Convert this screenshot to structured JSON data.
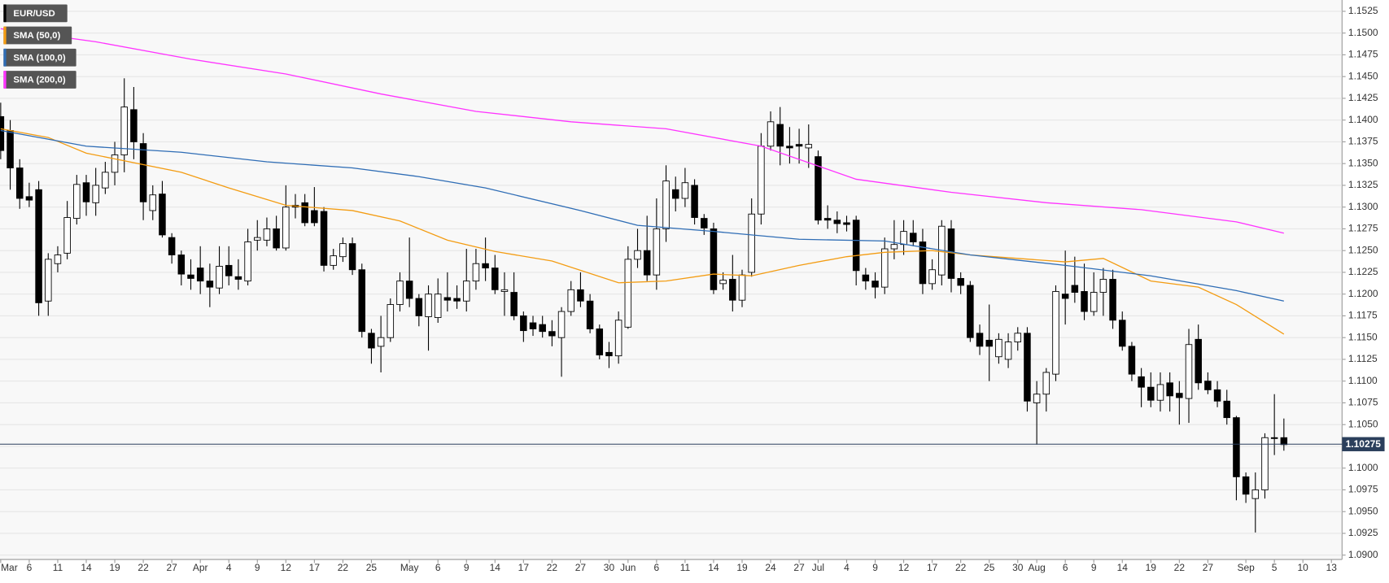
{
  "chart_data": {
    "type": "candlestick",
    "categories": [
      "Mar 1",
      "Mar 4",
      "Mar 5",
      "Mar 6",
      "Mar 7",
      "Mar 8",
      "Mar 11",
      "Mar 12",
      "Mar 13",
      "Mar 14",
      "Mar 15",
      "Mar 18",
      "Mar 19",
      "Mar 20",
      "Mar 21",
      "Mar 22",
      "Mar 25",
      "Mar 26",
      "Mar 27",
      "Mar 28",
      "Mar 29",
      "Apr 1",
      "Apr 2",
      "Apr 3",
      "Apr 4",
      "Apr 5",
      "Apr 8",
      "Apr 9",
      "Apr 10",
      "Apr 11",
      "Apr 12",
      "Apr 15",
      "Apr 16",
      "Apr 17",
      "Apr 18",
      "Apr 19",
      "Apr 22",
      "Apr 23",
      "Apr 24",
      "Apr 25",
      "Apr 26",
      "Apr 29",
      "Apr 30",
      "May 1",
      "May 2",
      "May 3",
      "May 6",
      "May 7",
      "May 8",
      "May 9",
      "May 10",
      "May 13",
      "May 14",
      "May 15",
      "May 16",
      "May 17",
      "May 20",
      "May 21",
      "May 22",
      "May 23",
      "May 24",
      "May 27",
      "May 28",
      "May 29",
      "May 30",
      "May 31",
      "Jun 3",
      "Jun 4",
      "Jun 5",
      "Jun 6",
      "Jun 7",
      "Jun 10",
      "Jun 11",
      "Jun 12",
      "Jun 13",
      "Jun 14",
      "Jun 17",
      "Jun 18",
      "Jun 19",
      "Jun 20",
      "Jun 21",
      "Jun 24",
      "Jun 25",
      "Jun 26",
      "Jun 27",
      "Jun 28",
      "Jul 1",
      "Jul 2",
      "Jul 3",
      "Jul 4",
      "Jul 5",
      "Jul 8",
      "Jul 9",
      "Jul 10",
      "Jul 11",
      "Jul 12",
      "Jul 15",
      "Jul 16",
      "Jul 17",
      "Jul 18",
      "Jul 19",
      "Jul 22",
      "Jul 23",
      "Jul 24",
      "Jul 25",
      "Jul 26",
      "Jul 29",
      "Jul 30",
      "Jul 31",
      "Aug 1",
      "Aug 2",
      "Aug 5",
      "Aug 6",
      "Aug 7",
      "Aug 8",
      "Aug 9",
      "Aug 12",
      "Aug 13",
      "Aug 14",
      "Aug 15",
      "Aug 16",
      "Aug 19",
      "Aug 20",
      "Aug 21",
      "Aug 22",
      "Aug 23",
      "Aug 26",
      "Aug 27",
      "Aug 28",
      "Aug 29",
      "Aug 30",
      "Sep 2",
      "Sep 3",
      "Sep 4",
      "Sep 5",
      "Sep 6",
      "Sep 9",
      "Sep 10",
      "Sep 11",
      "Sep 12",
      "Sep 13"
    ],
    "series": [
      {
        "name": "EUR/USD",
        "color": "#000000",
        "open": [
          1.1404,
          1.1388,
          1.1345,
          1.1312,
          1.132,
          1.1192,
          1.1235,
          1.1247,
          1.1287,
          1.1328,
          1.1305,
          1.1322,
          1.134,
          1.136,
          1.1412,
          1.1373,
          1.1296,
          1.1315,
          1.1265,
          1.1245,
          1.1222,
          1.123,
          1.1215,
          1.1207,
          1.1233,
          1.122,
          1.1215,
          1.1262,
          1.1262,
          1.1275,
          1.1253,
          1.1302,
          1.1305,
          1.1296,
          1.1295,
          1.1233,
          1.1243,
          1.1258,
          1.1228,
          1.1155,
          1.114,
          1.115,
          1.1188,
          1.1215,
          1.1195,
          1.1174,
          1.1173,
          1.1196,
          1.1195,
          1.1192,
          1.1215,
          1.1235,
          1.123,
          1.1203,
          1.1202,
          1.1175,
          1.1167,
          1.1165,
          1.1157,
          1.115,
          1.118,
          1.1205,
          1.1192,
          1.116,
          1.1133,
          1.1129,
          1.1162,
          1.124,
          1.125,
          1.1222,
          1.1275,
          1.132,
          1.131,
          1.1325,
          1.1287,
          1.1275,
          1.1212,
          1.1217,
          1.1193,
          1.1225,
          1.1292,
          1.137,
          1.1395,
          1.137,
          1.1372,
          1.1368,
          1.1358,
          1.1287,
          1.1285,
          1.1282,
          1.1285,
          1.1222,
          1.1215,
          1.1208,
          1.1252,
          1.1257,
          1.127,
          1.126,
          1.1212,
          1.1222,
          1.1275,
          1.1218,
          1.121,
          1.1155,
          1.1147,
          1.1128,
          1.1125,
          1.1145,
          1.1155,
          1.1075,
          1.1085,
          1.1108,
          1.12,
          1.121,
          1.1203,
          1.118,
          1.1202,
          1.1217,
          1.117,
          1.114,
          1.1105,
          1.1093,
          1.1078,
          1.1098,
          1.1086,
          1.108,
          1.1148,
          1.11,
          1.109,
          1.1077,
          1.1058,
          1.099,
          1.0965,
          1.0975,
          1.1035,
          1.1035,
          null,
          null,
          null,
          null,
          null
        ],
        "high": [
          1.142,
          1.14,
          1.1355,
          1.1328,
          1.133,
          1.1247,
          1.1255,
          1.1307,
          1.1337,
          1.1337,
          1.1345,
          1.1352,
          1.1375,
          1.1448,
          1.1438,
          1.1385,
          1.1325,
          1.133,
          1.127,
          1.125,
          1.124,
          1.1255,
          1.1235,
          1.1255,
          1.1255,
          1.124,
          1.1275,
          1.1285,
          1.1288,
          1.129,
          1.1325,
          1.1315,
          1.1315,
          1.1323,
          1.13,
          1.1252,
          1.1265,
          1.1265,
          1.1235,
          1.116,
          1.1175,
          1.1195,
          1.1225,
          1.1265,
          1.12,
          1.121,
          1.1218,
          1.1225,
          1.121,
          1.1252,
          1.1252,
          1.1265,
          1.1245,
          1.1225,
          1.1225,
          1.118,
          1.1175,
          1.1175,
          1.117,
          1.1185,
          1.1215,
          1.1225,
          1.12,
          1.1165,
          1.1145,
          1.118,
          1.1255,
          1.1275,
          1.129,
          1.131,
          1.1348,
          1.1335,
          1.1345,
          1.1332,
          1.1292,
          1.1282,
          1.1225,
          1.1245,
          1.1228,
          1.131,
          1.1385,
          1.141,
          1.1415,
          1.1392,
          1.139,
          1.1395,
          1.1365,
          1.1302,
          1.1295,
          1.129,
          1.129,
          1.123,
          1.1225,
          1.1265,
          1.1285,
          1.1285,
          1.1285,
          1.1275,
          1.124,
          1.1285,
          1.1285,
          1.1225,
          1.1215,
          1.1165,
          1.1188,
          1.1155,
          1.1155,
          1.1162,
          1.1162,
          1.11,
          1.1115,
          1.121,
          1.125,
          1.1243,
          1.1235,
          1.1225,
          1.123,
          1.1228,
          1.118,
          1.1145,
          1.1115,
          1.111,
          1.111,
          1.111,
          1.11,
          1.116,
          1.1165,
          1.111,
          1.11,
          1.109,
          1.106,
          1.0995,
          1.0995,
          1.104,
          1.1085,
          1.1057,
          null,
          null,
          null,
          null,
          null
        ],
        "low": [
          1.1355,
          1.132,
          1.1298,
          1.13,
          1.1175,
          1.1175,
          1.1225,
          1.124,
          1.128,
          1.129,
          1.129,
          1.1315,
          1.1325,
          1.134,
          1.1355,
          1.1285,
          1.1285,
          1.1265,
          1.1235,
          1.121,
          1.1205,
          1.12,
          1.1185,
          1.12,
          1.121,
          1.1205,
          1.121,
          1.125,
          1.1255,
          1.125,
          1.125,
          1.1287,
          1.1278,
          1.1278,
          1.1226,
          1.1228,
          1.1237,
          1.1222,
          1.115,
          1.112,
          1.111,
          1.1145,
          1.118,
          1.1185,
          1.1163,
          1.1135,
          1.1167,
          1.118,
          1.1183,
          1.118,
          1.1205,
          1.1215,
          1.12,
          1.1175,
          1.117,
          1.1145,
          1.1152,
          1.115,
          1.114,
          1.1105,
          1.1175,
          1.1185,
          1.1155,
          1.1125,
          1.1115,
          1.112,
          1.116,
          1.123,
          1.1215,
          1.1205,
          1.126,
          1.1295,
          1.13,
          1.128,
          1.1268,
          1.12,
          1.1205,
          1.118,
          1.1185,
          1.122,
          1.128,
          1.1365,
          1.1348,
          1.135,
          1.135,
          1.1345,
          1.128,
          1.1275,
          1.127,
          1.1272,
          1.121,
          1.1205,
          1.1195,
          1.12,
          1.124,
          1.1245,
          1.1255,
          1.12,
          1.1205,
          1.121,
          1.1202,
          1.12,
          1.1145,
          1.113,
          1.11,
          1.112,
          1.1115,
          1.1135,
          1.1065,
          1.1027,
          1.1065,
          1.11,
          1.1165,
          1.119,
          1.117,
          1.1175,
          1.1175,
          1.116,
          1.1135,
          1.11,
          1.107,
          1.107,
          1.1065,
          1.1065,
          1.105,
          1.1052,
          1.109,
          1.1085,
          1.107,
          1.105,
          1.0963,
          1.096,
          1.0926,
          1.0965,
          1.1015,
          1.102,
          null,
          null,
          null,
          null,
          null
        ],
        "close": [
          1.1365,
          1.1345,
          1.131,
          1.1308,
          1.119,
          1.124,
          1.1245,
          1.1288,
          1.1326,
          1.1306,
          1.1325,
          1.134,
          1.136,
          1.1415,
          1.1375,
          1.1306,
          1.1314,
          1.1268,
          1.1245,
          1.1223,
          1.1218,
          1.1215,
          1.1208,
          1.1232,
          1.1221,
          1.1217,
          1.126,
          1.1265,
          1.1275,
          1.1253,
          1.13,
          1.13,
          1.1282,
          1.1282,
          1.1233,
          1.1244,
          1.1258,
          1.1228,
          1.1157,
          1.1138,
          1.115,
          1.1188,
          1.1215,
          1.1195,
          1.1175,
          1.12,
          1.12,
          1.1193,
          1.1192,
          1.1215,
          1.1235,
          1.123,
          1.1205,
          1.1205,
          1.1175,
          1.1158,
          1.116,
          1.1157,
          1.1152,
          1.118,
          1.1205,
          1.1192,
          1.116,
          1.113,
          1.1129,
          1.117,
          1.124,
          1.125,
          1.1222,
          1.1275,
          1.133,
          1.131,
          1.1328,
          1.1288,
          1.1276,
          1.1205,
          1.1216,
          1.1193,
          1.1222,
          1.1292,
          1.137,
          1.1398,
          1.137,
          1.1368,
          1.137,
          1.1372,
          1.1285,
          1.1285,
          1.1281,
          1.128,
          1.1227,
          1.1215,
          1.1208,
          1.1252,
          1.1257,
          1.1272,
          1.126,
          1.1212,
          1.1228,
          1.1278,
          1.1218,
          1.121,
          1.115,
          1.114,
          1.114,
          1.1148,
          1.1145,
          1.1155,
          1.1077,
          1.1085,
          1.111,
          1.1203,
          1.1195,
          1.1202,
          1.118,
          1.1202,
          1.1217,
          1.117,
          1.114,
          1.1108,
          1.1093,
          1.1078,
          1.1096,
          1.1083,
          1.1081,
          1.1142,
          1.1098,
          1.109,
          1.1077,
          1.1058,
          1.099,
          1.097,
          1.0975,
          1.1035,
          1.1034,
          1.1027,
          null,
          null,
          null,
          null,
          null
        ]
      },
      {
        "name": "SMA (50,0)",
        "color": "#f39c12",
        "type": "line",
        "x": [
          "Mar 1",
          "Mar 8",
          "Mar 14",
          "Mar 28",
          "Apr 4",
          "Apr 12",
          "Apr 23",
          "Apr 30",
          "May 7",
          "May 14",
          "May 22",
          "May 31",
          "Jun 7",
          "Jun 14",
          "Jun 20",
          "Jun 27",
          "Jul 4",
          "Jul 10",
          "Jul 17",
          "Jul 23",
          "Jul 30",
          "Aug 6",
          "Aug 12",
          "Aug 19",
          "Aug 26",
          "Aug 30",
          "Sep 6"
        ],
        "values": [
          1.139,
          1.138,
          1.1362,
          1.134,
          1.1322,
          1.1302,
          1.1296,
          1.1284,
          1.1262,
          1.1249,
          1.1238,
          1.1213,
          1.1215,
          1.1223,
          1.1221,
          1.1233,
          1.1243,
          1.1248,
          1.125,
          1.1245,
          1.1241,
          1.1237,
          1.1241,
          1.1215,
          1.1208,
          1.1188,
          1.1154
        ]
      },
      {
        "name": "SMA (100,0)",
        "color": "#2f6db5",
        "type": "line",
        "x": [
          "Mar 1",
          "Mar 14",
          "Mar 28",
          "Apr 10",
          "Apr 23",
          "May 2",
          "May 13",
          "May 27",
          "Jun 4",
          "Jun 14",
          "Jun 27",
          "Jul 10",
          "Jul 23",
          "Aug 6",
          "Aug 19",
          "Aug 30",
          "Sep 6"
        ],
        "values": [
          1.1388,
          1.137,
          1.1363,
          1.1352,
          1.1345,
          1.1335,
          1.1322,
          1.1296,
          1.1279,
          1.1272,
          1.1263,
          1.1261,
          1.1245,
          1.1233,
          1.1221,
          1.1204,
          1.1192
        ]
      },
      {
        "name": "SMA (200,0)",
        "color": "#ff33ff",
        "type": "line",
        "x": [
          "Mar 1",
          "Mar 15",
          "Mar 29",
          "Apr 12",
          "Apr 26",
          "May 10",
          "May 24",
          "Jun 7",
          "Jun 21",
          "Jul 5",
          "Jul 19",
          "Aug 2",
          "Aug 16",
          "Aug 30",
          "Sep 6"
        ],
        "values": [
          1.1505,
          1.149,
          1.147,
          1.1453,
          1.143,
          1.141,
          1.1398,
          1.139,
          1.137,
          1.1332,
          1.1317,
          1.1305,
          1.1297,
          1.1283,
          1.127
        ]
      }
    ],
    "ylim": [
      1.0895,
      1.1538
    ],
    "yticks": [
      {
        "value": 1.09,
        "label": "1.0900"
      },
      1.0925,
      {
        "value": 1.095,
        "label": "1.0950"
      },
      1.0975,
      {
        "value": 1.1,
        "label": "1.1000"
      },
      1.1025,
      {
        "value": 1.105,
        "label": "1.1050"
      },
      1.1075,
      {
        "value": 1.11,
        "label": "1.1100"
      },
      1.1125,
      {
        "value": 1.115,
        "label": "1.1150"
      },
      1.1175,
      {
        "value": 1.12,
        "label": "1.1200"
      },
      1.1225,
      {
        "value": 1.125,
        "label": "1.1250"
      },
      1.1275,
      {
        "value": 1.13,
        "label": "1.1300"
      },
      1.1325,
      {
        "value": 1.135,
        "label": "1.1350"
      },
      1.1375,
      {
        "value": 1.14,
        "label": "1.1400"
      },
      1.1425,
      {
        "value": 1.145,
        "label": "1.1450"
      },
      1.1475,
      {
        "value": 1.15,
        "label": "1.1500"
      },
      1.1525
    ],
    "xticks": [
      {
        "value": "Mar 1",
        "label": "Mar"
      },
      {
        "value": "Mar 6",
        "label": "6"
      },
      {
        "value": "Mar 11",
        "label": "11"
      },
      {
        "value": "Mar 14",
        "label": "14"
      },
      {
        "value": "Mar 19",
        "label": "19"
      },
      {
        "value": "Mar 22",
        "label": "22"
      },
      {
        "value": "Mar 27",
        "label": "27"
      },
      {
        "value": "Apr 1",
        "label": "Apr"
      },
      {
        "value": "Apr 4",
        "label": "4"
      },
      {
        "value": "Apr 9",
        "label": "9"
      },
      {
        "value": "Apr 12",
        "label": "12"
      },
      {
        "value": "Apr 17",
        "label": "17"
      },
      {
        "value": "Apr 22",
        "label": "22"
      },
      {
        "value": "Apr 25",
        "label": "25"
      },
      {
        "value": "May 1",
        "label": "May"
      },
      {
        "value": "May 6",
        "label": "6"
      },
      {
        "value": "May 9",
        "label": "9"
      },
      {
        "value": "May 14",
        "label": "14"
      },
      {
        "value": "May 17",
        "label": "17"
      },
      {
        "value": "May 22",
        "label": "22"
      },
      {
        "value": "May 27",
        "label": "27"
      },
      {
        "value": "May 30",
        "label": "30"
      },
      {
        "value": "Jun 3",
        "label": "Jun"
      },
      {
        "value": "Jun 6",
        "label": "6"
      },
      {
        "value": "Jun 11",
        "label": "11"
      },
      {
        "value": "Jun 14",
        "label": "14"
      },
      {
        "value": "Jun 19",
        "label": "19"
      },
      {
        "value": "Jun 24",
        "label": "24"
      },
      {
        "value": "Jun 27",
        "label": "27"
      },
      {
        "value": "Jul 1",
        "label": "Jul"
      },
      {
        "value": "Jul 4",
        "label": "4"
      },
      {
        "value": "Jul 9",
        "label": "9"
      },
      {
        "value": "Jul 12",
        "label": "12"
      },
      {
        "value": "Jul 17",
        "label": "17"
      },
      {
        "value": "Jul 22",
        "label": "22"
      },
      {
        "value": "Jul 25",
        "label": "25"
      },
      {
        "value": "Jul 30",
        "label": "30"
      },
      {
        "value": "Aug 1",
        "label": "Aug"
      },
      {
        "value": "Aug 6",
        "label": "6"
      },
      {
        "value": "Aug 9",
        "label": "9"
      },
      {
        "value": "Aug 14",
        "label": "14"
      },
      {
        "value": "Aug 19",
        "label": "19"
      },
      {
        "value": "Aug 22",
        "label": "22"
      },
      {
        "value": "Aug 27",
        "label": "27"
      },
      {
        "value": "Sep 2",
        "label": "Sep"
      },
      {
        "value": "Sep 5",
        "label": "5"
      },
      {
        "value": "Sep 10",
        "label": "10"
      },
      {
        "value": "Sep 13",
        "label": "13"
      }
    ],
    "last_price": 1.10275,
    "last_price_color": "#2b3f5c",
    "grid": true
  }
}
